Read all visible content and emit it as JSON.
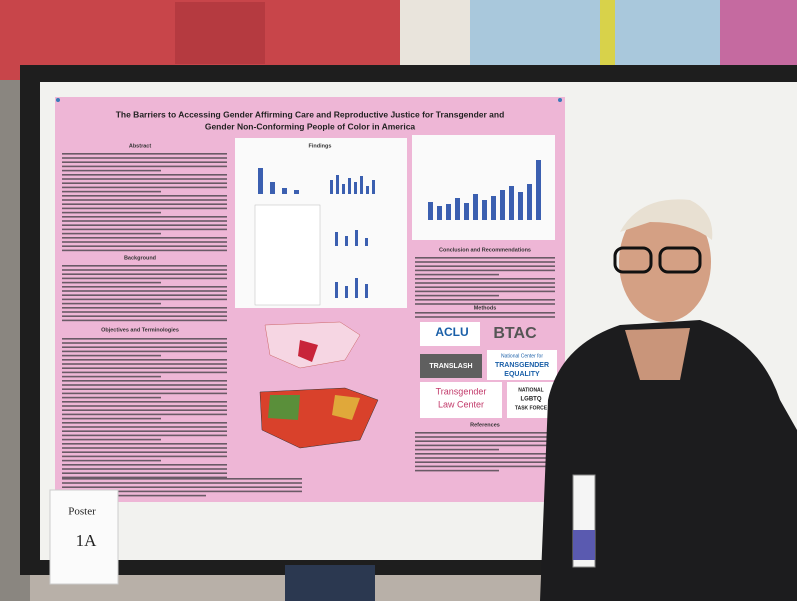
{
  "poster": {
    "title": [
      "The Barriers to Accessing Gender Affirming Care and Reproductive Justice for Transgender and",
      "Gender Non-Conforming People of Color in America"
    ],
    "headings": {
      "abstract": "Abstract",
      "findings": "Findings",
      "background": "Background",
      "objectives": "Objectives and Terminologies",
      "conclusion": "Conclusion and Recommendations",
      "methods": "Methods",
      "references": "References"
    },
    "logos": {
      "aclu": "ACLU",
      "btac": "BTAC",
      "translash": "TRANSLASH",
      "ncte": [
        "National Center for",
        "TRANSGENDER",
        "EQUALITY"
      ],
      "tlc": [
        "Transgender",
        "Law Center"
      ],
      "taskforce": [
        "NATIONAL",
        "LGBTQ",
        "TASK FORCE"
      ]
    }
  },
  "sign": {
    "line1": "Poster",
    "line2": "1A"
  }
}
